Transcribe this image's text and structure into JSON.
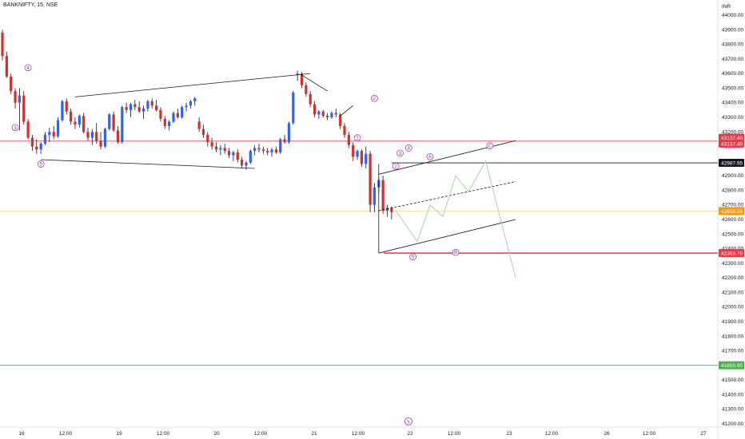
{
  "header": {
    "title": "BANKNIFTY, 15, NSE"
  },
  "chart_data": {
    "type": "candlestick",
    "currency": "INR",
    "y_ticks": [
      44000,
      43900,
      43800,
      43700,
      43600,
      43500,
      43400,
      43300,
      43200,
      43100,
      43000,
      42900,
      42800,
      42700,
      42600,
      42500,
      42400,
      42300,
      42200,
      42100,
      42000,
      41900,
      41800,
      41700,
      41600,
      41500,
      41400,
      41300,
      41200
    ],
    "x_ticks": [
      "16",
      "12:00",
      "19",
      "12:00",
      "20",
      "12:00",
      "21",
      "12:00",
      "22",
      "12:00",
      "23",
      "12:00",
      "26",
      "12:00",
      "27"
    ],
    "price_tags": [
      {
        "value": "43137.40",
        "color": "#f23645"
      },
      {
        "value": "43137.40",
        "color": "#f23645"
      },
      {
        "value": "42987.95",
        "color": "#131722"
      },
      {
        "value": "42658.05",
        "color": "#ff9800"
      },
      {
        "value": "42369.70",
        "color": "#f23645"
      },
      {
        "value": "41600.95",
        "color": "#4caf50"
      }
    ],
    "horizontal_levels": [
      {
        "price": 43137.4,
        "color": "#f23645"
      },
      {
        "price": 42987.95,
        "color": "#131722"
      },
      {
        "price": 42658.05,
        "color": "#ff9800"
      },
      {
        "price": 42369.7,
        "color": "#f23645"
      },
      {
        "price": 41600.95,
        "color": "#4caf50"
      }
    ],
    "wave_labels": [
      {
        "text": "4",
        "bar": 6,
        "price": 43640
      },
      {
        "text": "3",
        "bar": 3,
        "price": 43230
      },
      {
        "text": "5",
        "bar": 9,
        "price": 42980
      },
      {
        "text": "2",
        "bar": 87,
        "price": 43430
      },
      {
        "text": "1",
        "bar": 83,
        "price": 43160
      },
      {
        "text": "3",
        "bar": 93,
        "price": 43055
      },
      {
        "text": "4",
        "bar": 95,
        "price": 43090
      },
      {
        "text": "2",
        "bar": 92,
        "price": 42965
      },
      {
        "text": "5",
        "bar": 96,
        "price": 42345
      },
      {
        "text": "A",
        "bar": 100,
        "price": 43030
      },
      {
        "text": "B",
        "bar": 106,
        "price": 42375
      },
      {
        "text": "C",
        "bar": 114,
        "price": 43105
      }
    ],
    "candles": [
      [
        43880,
        43900,
        43690,
        43720
      ],
      [
        43720,
        43750,
        43570,
        43580
      ],
      [
        43580,
        43600,
        43460,
        43480
      ],
      [
        43480,
        43500,
        43360,
        43400
      ],
      [
        43400,
        43500,
        43210,
        43450
      ],
      [
        43450,
        43480,
        43250,
        43270
      ],
      [
        43270,
        43290,
        43150,
        43160
      ],
      [
        43160,
        43180,
        43070,
        43100
      ],
      [
        43100,
        43150,
        43050,
        43080
      ],
      [
        43080,
        43130,
        43050,
        43120
      ],
      [
        43120,
        43200,
        43110,
        43180
      ],
      [
        43180,
        43230,
        43130,
        43200
      ],
      [
        43200,
        43240,
        43150,
        43170
      ],
      [
        43170,
        43300,
        43160,
        43280
      ],
      [
        43280,
        43420,
        43270,
        43410
      ],
      [
        43410,
        43430,
        43320,
        43340
      ],
      [
        43340,
        43360,
        43250,
        43270
      ],
      [
        43270,
        43300,
        43220,
        43250
      ],
      [
        43250,
        43320,
        43230,
        43310
      ],
      [
        43310,
        43330,
        43190,
        43200
      ],
      [
        43200,
        43230,
        43140,
        43160
      ],
      [
        43160,
        43220,
        43110,
        43200
      ],
      [
        43200,
        43260,
        43120,
        43140
      ],
      [
        43140,
        43200,
        43080,
        43100
      ],
      [
        43100,
        43230,
        43090,
        43220
      ],
      [
        43220,
        43330,
        43210,
        43320
      ],
      [
        43320,
        43340,
        43200,
        43210
      ],
      [
        43210,
        43240,
        43120,
        43130
      ],
      [
        43130,
        43380,
        43120,
        43370
      ],
      [
        43370,
        43400,
        43330,
        43350
      ],
      [
        43350,
        43400,
        43300,
        43390
      ],
      [
        43390,
        43420,
        43350,
        43370
      ],
      [
        43370,
        43410,
        43330,
        43340
      ],
      [
        43340,
        43380,
        43290,
        43360
      ],
      [
        43360,
        43420,
        43340,
        43410
      ],
      [
        43410,
        43430,
        43360,
        43380
      ],
      [
        43380,
        43420,
        43340,
        43350
      ],
      [
        43350,
        43370,
        43270,
        43290
      ],
      [
        43290,
        43310,
        43220,
        43240
      ],
      [
        43240,
        43280,
        43210,
        43270
      ],
      [
        43270,
        43340,
        43260,
        43330
      ],
      [
        43330,
        43360,
        43290,
        43300
      ],
      [
        43300,
        43380,
        43290,
        43370
      ],
      [
        43370,
        43400,
        43340,
        43380
      ],
      [
        43380,
        43420,
        43360,
        43410
      ],
      [
        43410,
        43440,
        43380,
        43430
      ],
      [
        43270,
        43300,
        43200,
        43220
      ],
      [
        43220,
        43250,
        43160,
        43180
      ],
      [
        43180,
        43200,
        43100,
        43130
      ],
      [
        43130,
        43160,
        43080,
        43100
      ],
      [
        43100,
        43130,
        43060,
        43080
      ],
      [
        43080,
        43110,
        43040,
        43090
      ],
      [
        43090,
        43120,
        43050,
        43070
      ],
      [
        43070,
        43090,
        43020,
        43040
      ],
      [
        43040,
        43070,
        43000,
        43060
      ],
      [
        43060,
        43080,
        42990,
        43010
      ],
      [
        43010,
        43030,
        42950,
        42970
      ],
      [
        42970,
        43000,
        42940,
        42990
      ],
      [
        42990,
        43080,
        42980,
        43070
      ],
      [
        43070,
        43110,
        43040,
        43090
      ],
      [
        43090,
        43120,
        43060,
        43080
      ],
      [
        43080,
        43100,
        43050,
        43070
      ],
      [
        43070,
        43090,
        43040,
        43060
      ],
      [
        43060,
        43090,
        43030,
        43080
      ],
      [
        43080,
        43100,
        43050,
        43060
      ],
      [
        43060,
        43160,
        43050,
        43150
      ],
      [
        43150,
        43180,
        43120,
        43130
      ],
      [
        43130,
        43270,
        43120,
        43260
      ],
      [
        43260,
        43480,
        43250,
        43470
      ],
      [
        43590,
        43620,
        43550,
        43600
      ],
      [
        43600,
        43610,
        43500,
        43520
      ],
      [
        43520,
        43540,
        43440,
        43460
      ],
      [
        43460,
        43480,
        43370,
        43390
      ],
      [
        43390,
        43410,
        43300,
        43320
      ],
      [
        43320,
        43350,
        43290,
        43340
      ],
      [
        43340,
        43350,
        43300,
        43310
      ],
      [
        43310,
        43330,
        43280,
        43300
      ],
      [
        43300,
        43340,
        43290,
        43330
      ],
      [
        43330,
        43360,
        43300,
        43320
      ],
      [
        43320,
        43330,
        43220,
        43240
      ],
      [
        43240,
        43260,
        43160,
        43180
      ],
      [
        43180,
        43200,
        43090,
        43110
      ],
      [
        43110,
        43130,
        43000,
        43030
      ],
      [
        43030,
        43080,
        43010,
        43070
      ],
      [
        43070,
        43080,
        42960,
        42980
      ],
      [
        42980,
        43100,
        42950,
        43050
      ],
      [
        43050,
        43070,
        42650,
        42700
      ],
      [
        42700,
        42850,
        42650,
        42820
      ],
      [
        42820,
        42890,
        42780,
        42870
      ],
      [
        42870,
        42900,
        42640,
        42660
      ],
      [
        42660,
        42700,
        42620,
        42680
      ],
      [
        42680,
        42690,
        42600,
        42650
      ]
    ]
  }
}
